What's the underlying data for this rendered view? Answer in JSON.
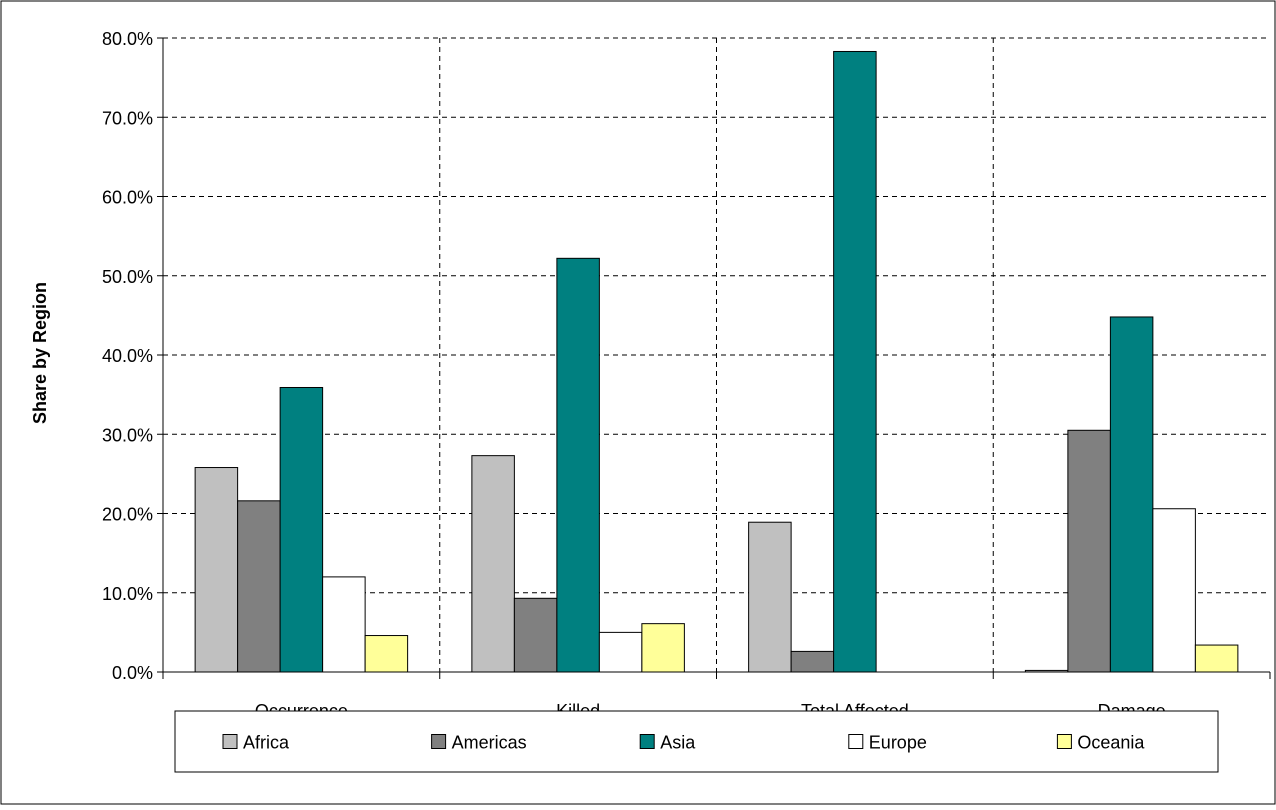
{
  "chart_data": {
    "type": "bar",
    "title": "",
    "xlabel": "",
    "ylabel": "Share by Region",
    "ylim": [
      0,
      0.8
    ],
    "yticks": [
      "0.0%",
      "10.0%",
      "20.0%",
      "30.0%",
      "40.0%",
      "50.0%",
      "60.0%",
      "70.0%",
      "80.0%"
    ],
    "categories": [
      "Occurrence",
      "Killed",
      "Total Affected",
      "Damage"
    ],
    "series": [
      {
        "name": "Africa",
        "values": [
          0.258,
          0.273,
          0.189,
          0.002
        ]
      },
      {
        "name": "Americas",
        "values": [
          0.216,
          0.093,
          0.026,
          0.305
        ]
      },
      {
        "name": "Asia",
        "values": [
          0.359,
          0.522,
          0.783,
          0.448
        ]
      },
      {
        "name": "Europe",
        "values": [
          0.12,
          0.05,
          0.0,
          0.206
        ]
      },
      {
        "name": "Oceania",
        "values": [
          0.046,
          0.061,
          0.0,
          0.034
        ]
      }
    ],
    "grid": true,
    "legend_position": "bottom"
  },
  "colors": {
    "Africa": "#c0c0c0",
    "Americas": "#808080",
    "Asia": "#008080",
    "Europe": "#ffffff",
    "Oceania": "#ffff99",
    "grid": "#000000",
    "frame": "#000000"
  }
}
